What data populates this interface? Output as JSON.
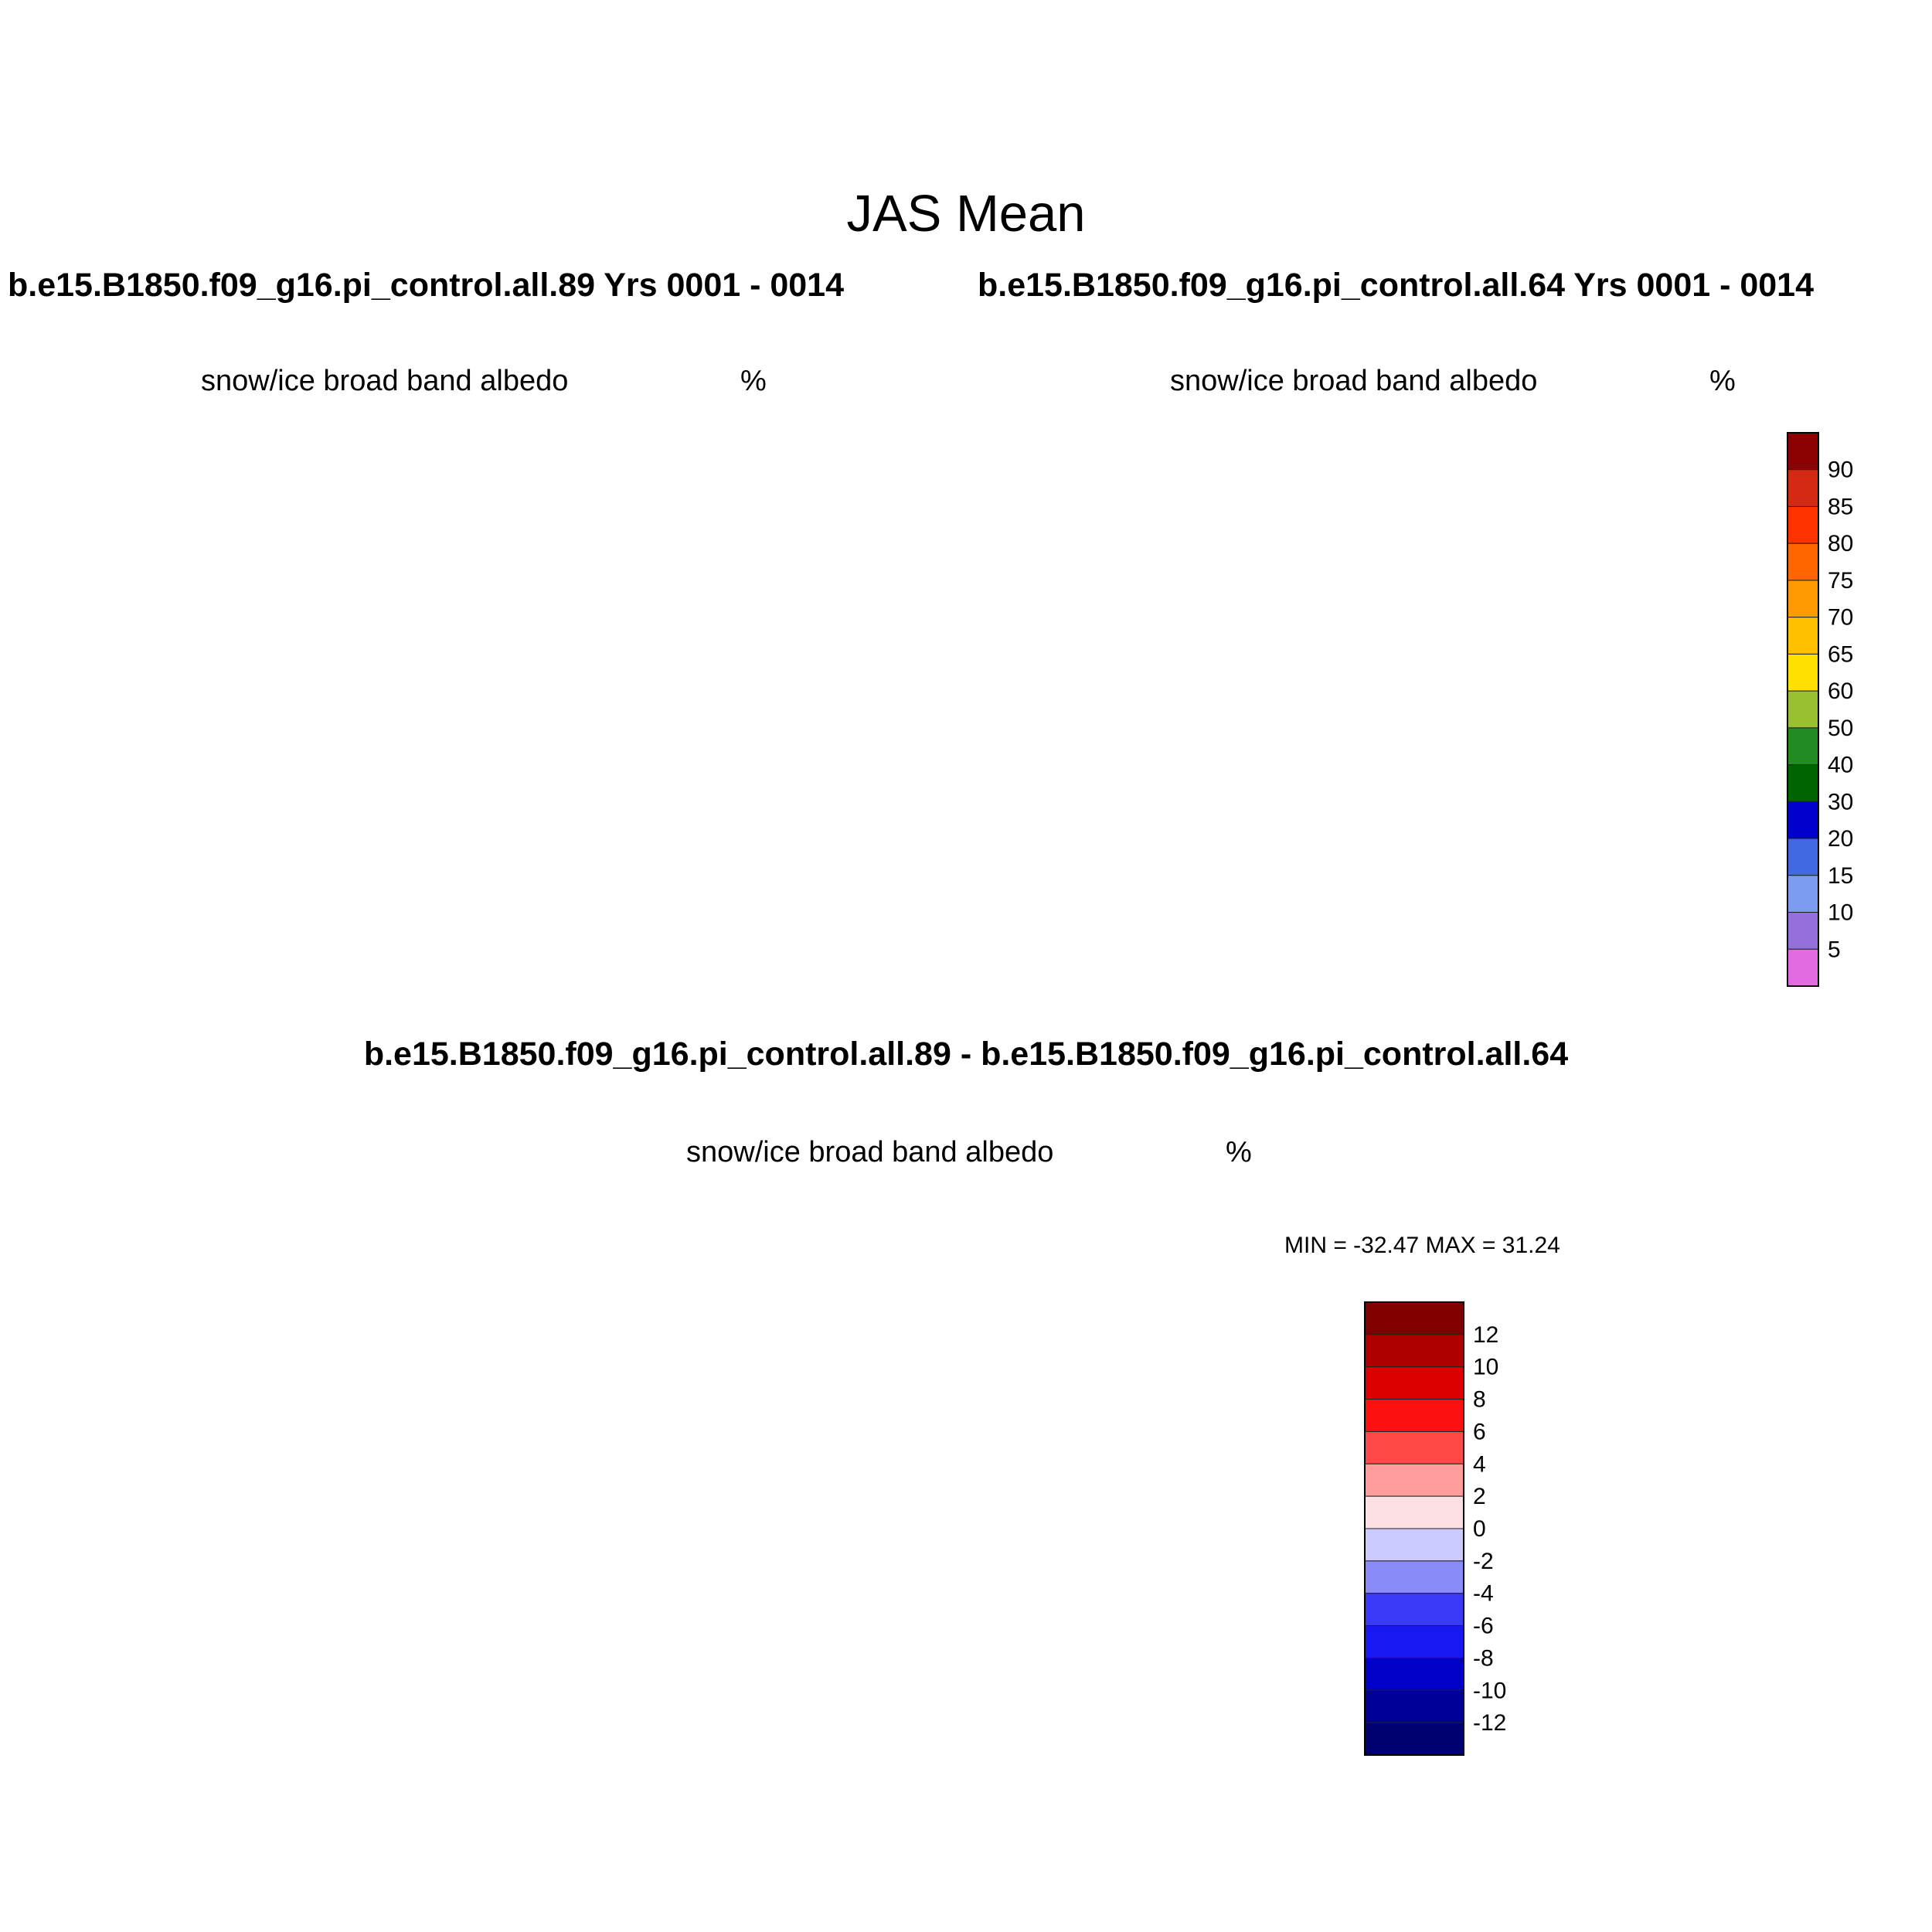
{
  "figure": {
    "title": "JAS Mean",
    "diff_title": "b.e15.B1850.f09_g16.pi_control.all.89 - b.e15.B1850.f09_g16.pi_control.all.64"
  },
  "panels": [
    {
      "case_title": "b.e15.B1850.f09_g16.pi_control.all.89  Yrs 0001 - 0014",
      "variable": "snow/ice broad band albedo",
      "units": "%",
      "projection": "north-polar-stereographic",
      "land_color": "#bebebe"
    },
    {
      "case_title": "b.e15.B1850.f09_g16.pi_control.all.64  Yrs 0001 - 0014",
      "variable": "snow/ice broad band albedo",
      "units": "%",
      "projection": "north-polar-stereographic",
      "land_color": "#bebebe"
    },
    {
      "variable": "snow/ice broad band albedo",
      "units": "%",
      "min_max_text": "MIN = -32.47 MAX =  31.24",
      "projection": "north-polar-stereographic",
      "land_color": "#bebebe"
    }
  ],
  "albedo_colorbar": {
    "labels": [
      "90",
      "85",
      "80",
      "75",
      "70",
      "65",
      "60",
      "50",
      "40",
      "30",
      "20",
      "15",
      "10",
      "5"
    ],
    "colors": [
      "#8b0000",
      "#d42a14",
      "#ff3300",
      "#ff6600",
      "#ff9900",
      "#ffc000",
      "#ffe000",
      "#99c032",
      "#228b22",
      "#006400",
      "#0000cd",
      "#4169e1",
      "#7b9cf0",
      "#9370db",
      "#e16ce1"
    ]
  },
  "diff_colorbar": {
    "labels": [
      "12",
      "10",
      "8",
      "6",
      "4",
      "2",
      "0",
      "-2",
      "-4",
      "-6",
      "-8",
      "-10",
      "-12"
    ],
    "colors": [
      "#800000",
      "#b00000",
      "#dd0000",
      "#ff1010",
      "#ff4848",
      "#ff9c9c",
      "#fbdfe3",
      "#cccbff",
      "#8a8af8",
      "#3a3af8",
      "#1818f2",
      "#0000c8",
      "#000096",
      "#000070"
    ]
  }
}
